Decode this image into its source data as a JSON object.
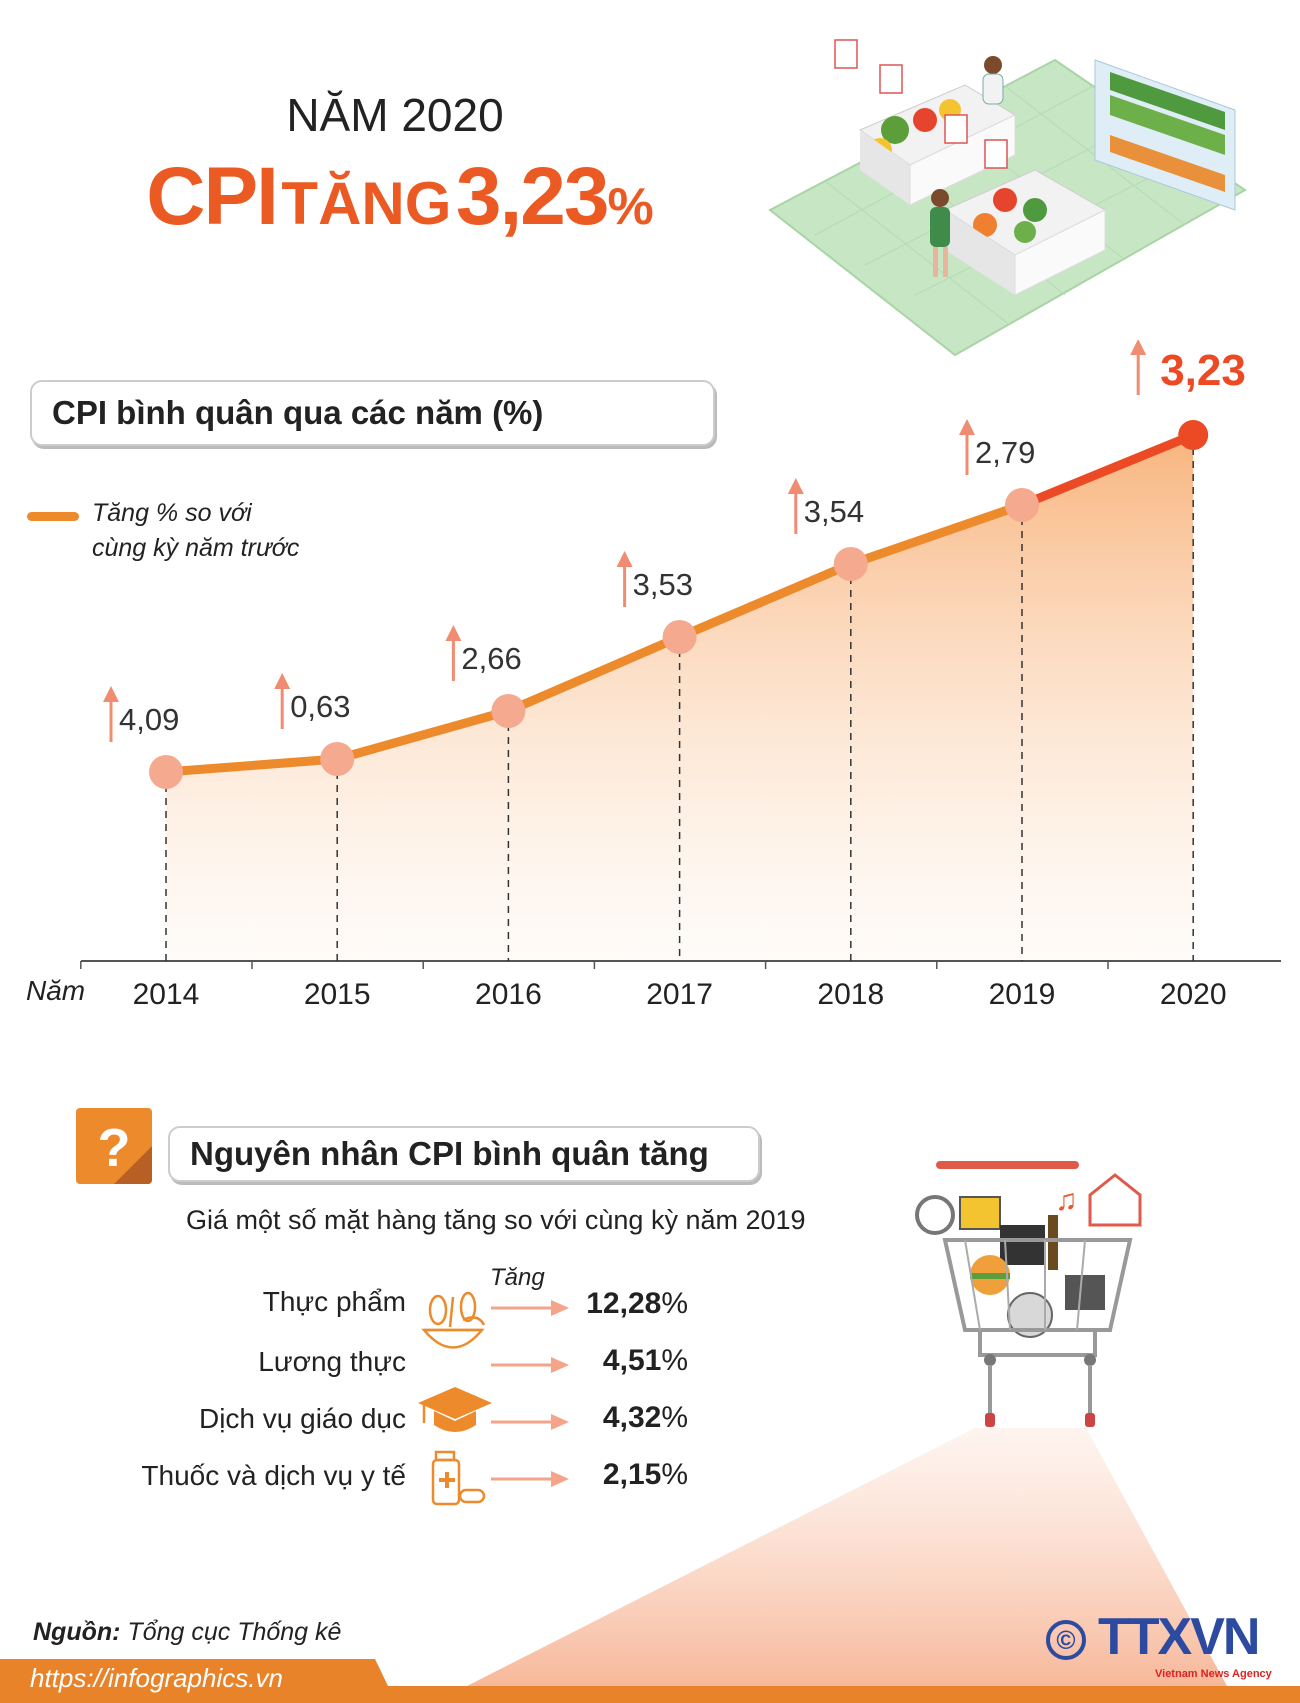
{
  "header": {
    "year_title": "NĂM 2020",
    "headline_cpi": "CPI",
    "headline_verb": "TĂNG",
    "headline_value": "3,23",
    "headline_pct": "%"
  },
  "chart_data": {
    "type": "line",
    "title": "CPI bình quân qua các năm (%)",
    "legend": "Tăng % so với cùng kỳ năm trước",
    "legend_lines": [
      "Tăng % so với",
      "cùng kỳ năm trước"
    ],
    "xlabel": "Năm",
    "categories": [
      "2014",
      "2015",
      "2016",
      "2017",
      "2018",
      "2019",
      "2020"
    ],
    "values": [
      4.09,
      0.63,
      2.66,
      3.53,
      3.54,
      2.79,
      3.23
    ],
    "value_labels": [
      "4,09",
      "0,63",
      "2,66",
      "3,53",
      "3,54",
      "2,79",
      "3,23"
    ],
    "highlight": "2020",
    "colors": {
      "line": "#ec8a2c",
      "highlight": "#ec4a24",
      "marker": "#f5a98f",
      "arrow": "#f08c72"
    }
  },
  "reasons": {
    "title": "Nguyên nhân CPI bình quân tăng",
    "subtitle": "Giá một số mặt hàng tăng so với cùng kỳ năm 2019",
    "increase_label": "Tăng",
    "items": [
      {
        "label": "Thực phẩm",
        "value": "12,28",
        "unit": "%",
        "icon": "food-bowl-icon"
      },
      {
        "label": "Lương thực",
        "value": "4,51",
        "unit": "%",
        "icon": ""
      },
      {
        "label": "Dịch vụ giáo dục",
        "value": "4,32",
        "unit": "%",
        "icon": "graduation-cap-icon"
      },
      {
        "label": "Thuốc và dịch vụ y tế",
        "value": "2,15",
        "unit": "%",
        "icon": "medicine-bottle-icon"
      }
    ]
  },
  "footer": {
    "source_label": "Nguồn:",
    "source": "Tổng cục Thống kê",
    "url": "https://infographics.vn",
    "logo": "TTXVN",
    "logo_sub": "Vietnam News Agency",
    "copyright": "©"
  }
}
